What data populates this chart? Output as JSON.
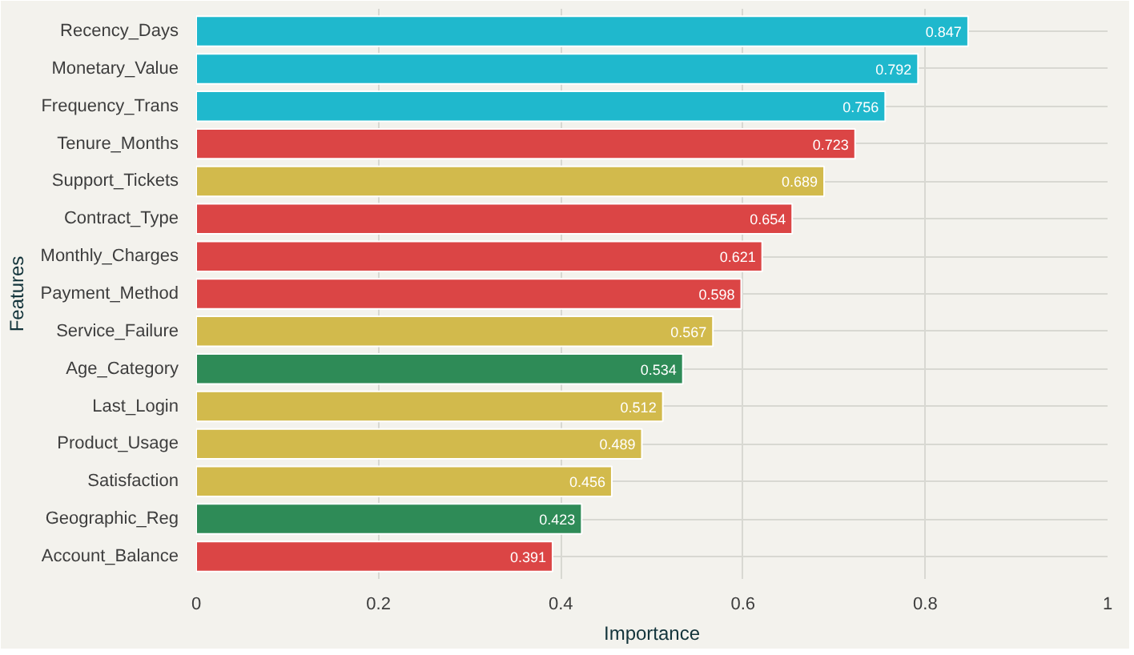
{
  "chart_data": {
    "type": "bar",
    "orientation": "horizontal",
    "xlabel": "Importance",
    "ylabel": "Features",
    "categories": [
      "Recency_Days",
      "Monetary_Value",
      "Frequency_Trans",
      "Tenure_Months",
      "Support_Tickets",
      "Contract_Type",
      "Monthly_Charges",
      "Payment_Method",
      "Service_Failure",
      "Age_Category",
      "Last_Login",
      "Product_Usage",
      "Satisfaction",
      "Geographic_Reg",
      "Account_Balance"
    ],
    "values": [
      0.847,
      0.792,
      0.756,
      0.723,
      0.689,
      0.654,
      0.621,
      0.598,
      0.567,
      0.534,
      0.512,
      0.489,
      0.456,
      0.423,
      0.391
    ],
    "colors": [
      "#1fb8cd",
      "#1fb8cd",
      "#1fb8cd",
      "#db4545",
      "#d2ba4c",
      "#db4545",
      "#db4545",
      "#db4545",
      "#d2ba4c",
      "#2e8b57",
      "#d2ba4c",
      "#d2ba4c",
      "#d2ba4c",
      "#2e8b57",
      "#db4545"
    ],
    "xlim": [
      0,
      1
    ],
    "xticks": [
      0,
      0.2,
      0.4,
      0.6,
      0.8,
      1
    ],
    "grid": true,
    "data_labels": true
  }
}
